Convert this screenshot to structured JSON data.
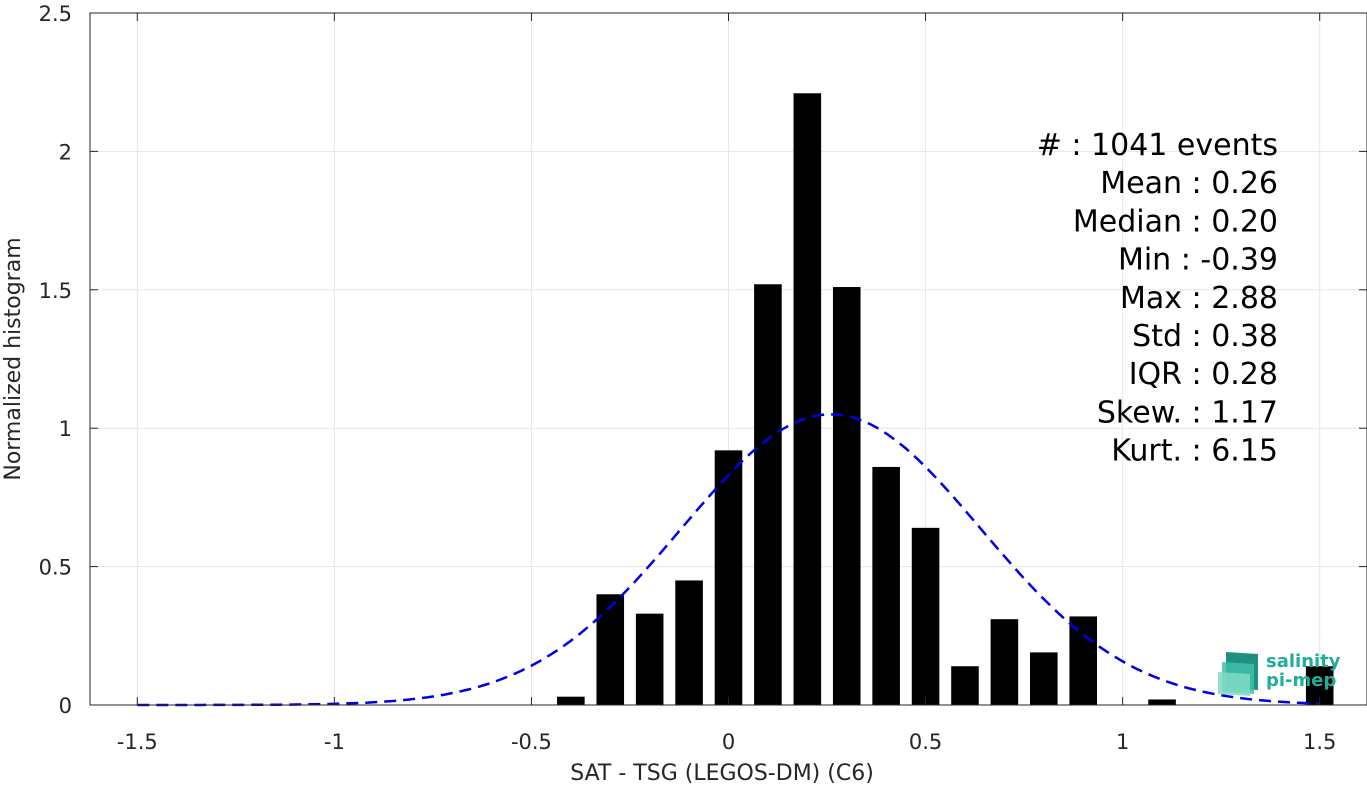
{
  "chart_data": {
    "type": "bar",
    "xlabel": "SAT - TSG (LEGOS-DM) (C6)",
    "ylabel": "Normalized histogram",
    "xlim": [
      -1.62,
      1.62
    ],
    "ylim": [
      0,
      2.5
    ],
    "xticks": [
      -1.5,
      -1,
      -0.5,
      0,
      0.5,
      1,
      1.5
    ],
    "xtick_labels": [
      "-1.5",
      "-1",
      "-0.5",
      "0",
      "0.5",
      "1",
      "1.5"
    ],
    "yticks": [
      0,
      0.5,
      1,
      1.5,
      2,
      2.5
    ],
    "ytick_labels": [
      "0",
      "0.5",
      "1",
      "1.5",
      "2",
      "2.5"
    ],
    "grid": true,
    "bar_width": 0.07,
    "bars": [
      {
        "x": -0.4,
        "value": 0.03
      },
      {
        "x": -0.3,
        "value": 0.4
      },
      {
        "x": -0.2,
        "value": 0.33
      },
      {
        "x": -0.1,
        "value": 0.45
      },
      {
        "x": 0.0,
        "value": 0.92
      },
      {
        "x": 0.1,
        "value": 1.52
      },
      {
        "x": 0.2,
        "value": 2.21
      },
      {
        "x": 0.3,
        "value": 1.51
      },
      {
        "x": 0.4,
        "value": 0.86
      },
      {
        "x": 0.5,
        "value": 0.64
      },
      {
        "x": 0.6,
        "value": 0.14
      },
      {
        "x": 0.7,
        "value": 0.31
      },
      {
        "x": 0.8,
        "value": 0.19
      },
      {
        "x": 0.9,
        "value": 0.32
      },
      {
        "x": 1.1,
        "value": 0.02
      },
      {
        "x": 1.5,
        "value": 0.14
      }
    ],
    "bar_color": "#000000",
    "curve": {
      "style": "dashed",
      "color": "#0000e6",
      "mean": 0.26,
      "std": 0.38,
      "x_range": [
        -1.5,
        1.5
      ]
    },
    "stats_lines": [
      "#  : 1041 events",
      "Mean : 0.26",
      "Median : 0.20",
      "Min : -0.39",
      "Max : 2.88",
      "Std : 0.38",
      "IQR : 0.28",
      "Skew. : 1.17",
      "Kurt. : 6.15"
    ]
  },
  "logo": {
    "line1": "salinity",
    "line2": "pi-mep",
    "color": "#1fae9a"
  }
}
